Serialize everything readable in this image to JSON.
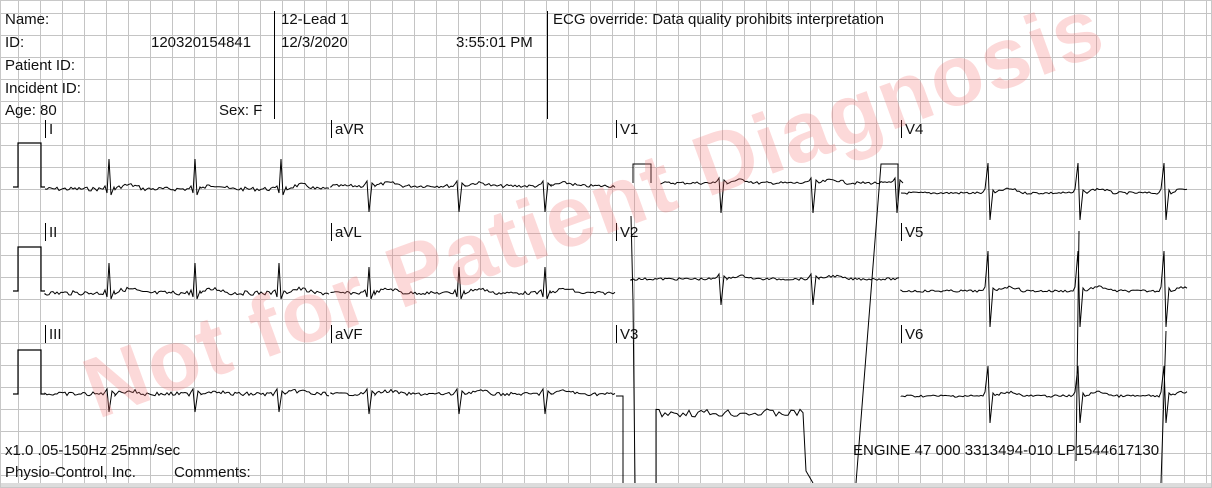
{
  "header": {
    "name_label": "Name:",
    "id_label": "ID:",
    "id_value": "120320154841",
    "patient_id_label": "Patient ID:",
    "incident_id_label": "Incident ID:",
    "age": "Age: 80",
    "sex": "Sex: F",
    "report_type": "12-Lead 1",
    "date": "12/3/2020",
    "time": "3:55:01 PM",
    "override_text": "ECG override: Data quality prohibits interpretation"
  },
  "leads": {
    "row1": [
      "I",
      "aVR",
      "V1",
      "V4"
    ],
    "row2": [
      "II",
      "aVL",
      "V2",
      "V5"
    ],
    "row3": [
      "III",
      "aVF",
      "V3",
      "V6"
    ]
  },
  "footer": {
    "settings": "x1.0 .05-150Hz 25mm/sec",
    "device": "ENGINE 47 000 3313494-010 LP1544617130",
    "manufacturer": "Physio-Control, Inc.",
    "comments_label": "Comments:"
  },
  "watermark": "Not for Patient Diagnosis",
  "colors": {
    "grid": "#c4c4c4",
    "trace": "#000000",
    "watermark": "#f57878"
  }
}
